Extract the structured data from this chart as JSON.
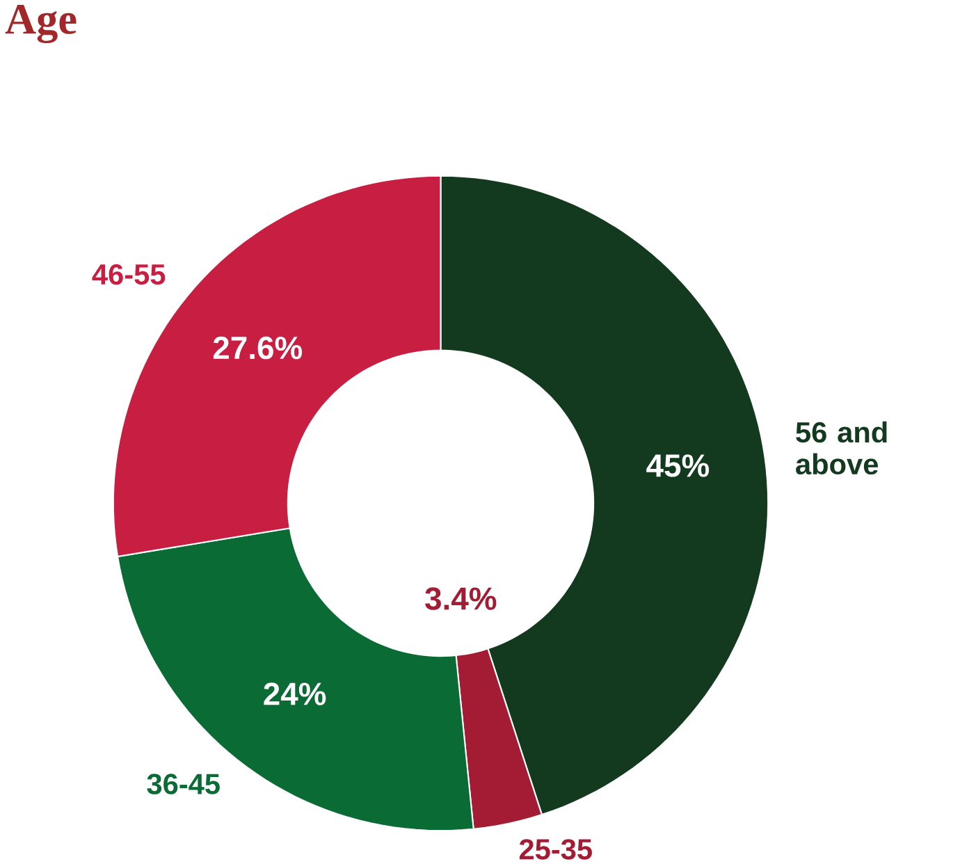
{
  "chart_data": {
    "type": "donut",
    "title": "Age",
    "categories": [
      "56 and above",
      "25-35",
      "36-45",
      "46-55"
    ],
    "values": [
      45,
      3.4,
      24,
      27.6
    ],
    "value_labels": [
      "45%",
      "3.4%",
      "24%",
      "27.6%"
    ],
    "colors": [
      "#133a1e",
      "#a31c34",
      "#0a6b35",
      "#c81e42"
    ]
  }
}
